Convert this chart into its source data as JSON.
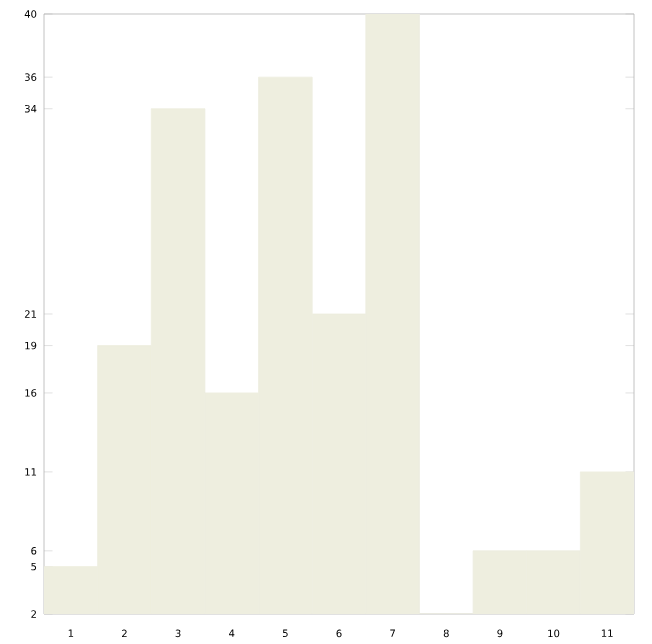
{
  "chart_data": {
    "type": "bar",
    "categories": [
      "1",
      "2",
      "3",
      "4",
      "5",
      "6",
      "7",
      "8",
      "9",
      "10",
      "11"
    ],
    "values": [
      5,
      19,
      34,
      16,
      36,
      21,
      40,
      2,
      6,
      6,
      11
    ],
    "color": "#eeeedf",
    "ylim": [
      2,
      40
    ],
    "yticks": [
      2,
      5,
      6,
      11,
      16,
      19,
      21,
      34,
      36,
      40
    ],
    "grid": false
  }
}
